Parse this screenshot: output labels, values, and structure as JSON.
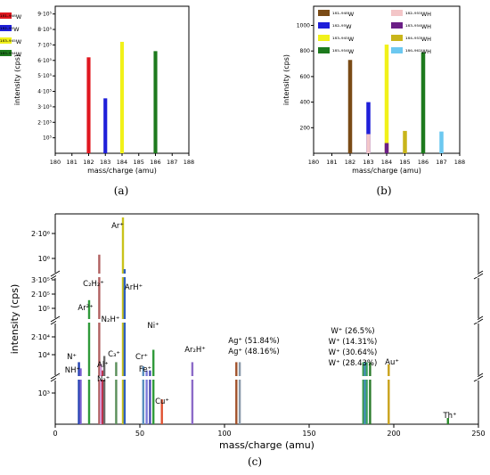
{
  "chart_data": [
    {
      "panel": "a",
      "type": "bar",
      "caption": "(a)",
      "xlabel": "mass/charge (amu)",
      "ylabel": "intensity (cps)",
      "xlim": [
        180,
        188
      ],
      "xticks": [
        "180",
        "181",
        "182",
        "183",
        "184",
        "185",
        "186",
        "187",
        "188"
      ],
      "ylim": [
        0,
        950000
      ],
      "yticks": [
        {
          "v": 100000,
          "label": "10⁵"
        },
        {
          "v": 200000,
          "label": "2·10⁵"
        },
        {
          "v": 300000,
          "label": "3·10⁵"
        },
        {
          "v": 400000,
          "label": "4·10⁵"
        },
        {
          "v": 500000,
          "label": "5·10⁵"
        },
        {
          "v": 600000,
          "label": "6·10⁵"
        },
        {
          "v": 700000,
          "label": "7·10⁵"
        },
        {
          "v": 800000,
          "label": "8·10⁵"
        },
        {
          "v": 900000,
          "label": "9·10⁵"
        }
      ],
      "legend_position": "top-left",
      "series": [
        {
          "name": "¹⁸¹·⁹⁴⁸W",
          "color": "#e0161f",
          "x": 182,
          "value": 620000
        },
        {
          "name": "¹⁸²·⁹⁵W",
          "color": "#1f1fd9",
          "x": 183,
          "value": 355000
        },
        {
          "name": "¹⁸³·⁹⁴⁵W",
          "color": "#f1f11a",
          "x": 184,
          "value": 720000
        },
        {
          "name": "¹⁸⁵·⁹⁵⁴W",
          "color": "#1d7a1d",
          "x": 186,
          "value": 660000
        }
      ]
    },
    {
      "panel": "b",
      "type": "bar",
      "caption": "(b)",
      "xlabel": "mass/charge (amu)",
      "ylabel": "intensity (cps)",
      "xlim": [
        180,
        188
      ],
      "xticks": [
        "180",
        "181",
        "182",
        "183",
        "184",
        "185",
        "186",
        "187",
        "188"
      ],
      "ylim": [
        0,
        1150
      ],
      "yticks": [
        {
          "v": 200,
          "label": "200"
        },
        {
          "v": 400,
          "label": "400"
        },
        {
          "v": 600,
          "label": "600"
        },
        {
          "v": 800,
          "label": "800"
        },
        {
          "v": 1000,
          "label": "1000"
        }
      ],
      "legend_position": "top",
      "series": [
        {
          "name": "¹⁸¹·⁹⁴⁸W",
          "color": "#7a4b16",
          "x": 182,
          "value": 730
        },
        {
          "name": "¹⁸²·⁹⁵W",
          "color": "#1f1fd9",
          "x": 183,
          "value": 400
        },
        {
          "name": "¹⁸³·⁹⁴⁵W",
          "color": "#f1f11a",
          "x": 184,
          "value": 850
        },
        {
          "name": "¹⁸⁵·⁹⁵⁴W",
          "color": "#1d7a1d",
          "x": 186,
          "value": 790
        },
        {
          "name": "¹⁸²·⁹⁵⁵WH",
          "color": "#f3c6c8",
          "x": 183,
          "value": 150
        },
        {
          "name": "¹⁸³·⁹⁵⁴WH",
          "color": "#6b1f86",
          "x": 184,
          "value": 80
        },
        {
          "name": "¹⁸⁴·⁹⁵³WH",
          "color": "#c9b51a",
          "x": 185,
          "value": 175
        },
        {
          "name": "¹⁸⁶·⁹⁶¹WH",
          "color": "#6cc8f0",
          "x": 187,
          "value": 170
        }
      ]
    },
    {
      "panel": "c",
      "type": "bar",
      "caption": "(c)",
      "xlabel": "mass/charge (amu)",
      "ylabel": "intensity (cps)",
      "xlim": [
        0,
        250
      ],
      "xticks": [
        "0",
        "50",
        "100",
        "150",
        "200",
        "250"
      ],
      "ytick_labels": [
        "10³",
        "10⁴",
        "2·10⁴",
        "10⁵",
        "2·10⁵",
        "3·10⁵",
        "10⁶",
        "2·10⁶"
      ],
      "annotations": [
        {
          "text": "Ar⁺",
          "x": 40
        },
        {
          "text": "C₂H₂⁺",
          "x": 26
        },
        {
          "text": "ArH⁺",
          "x": 41
        },
        {
          "text": "Ar²⁺",
          "x": 20
        },
        {
          "text": "N₂H⁺",
          "x": 29
        },
        {
          "text": "Ni⁺",
          "x": 58
        },
        {
          "text": "N⁺",
          "x": 14
        },
        {
          "text": "Al⁺",
          "x": 27
        },
        {
          "text": "C₃⁺",
          "x": 36
        },
        {
          "text": "Cr⁺",
          "x": 52
        },
        {
          "text": "NH⁺",
          "x": 15
        },
        {
          "text": "N₂⁺",
          "x": 28
        },
        {
          "text": "Fe⁺",
          "x": 56
        },
        {
          "text": "Cu⁺",
          "x": 63
        },
        {
          "text": "Ar₂H⁺",
          "x": 81
        },
        {
          "text": "Ag⁺ (51.84%)",
          "x": 107
        },
        {
          "text": "Ag⁺ (48.16%)",
          "x": 109
        },
        {
          "text": "W⁺ (26.5%)",
          "x": 182
        },
        {
          "text": "W⁺ (14.31%)",
          "x": 183
        },
        {
          "text": "W⁺ (30.64%)",
          "x": 184
        },
        {
          "text": "W⁺ (28.43%)",
          "x": 186
        },
        {
          "text": "Au⁺",
          "x": 197
        },
        {
          "text": "Th⁺",
          "x": 232
        }
      ],
      "bars": [
        {
          "x": 14,
          "color": "#1f3fb0",
          "level": 0.3
        },
        {
          "x": 15,
          "color": "#7a5fd0",
          "level": 0.27
        },
        {
          "x": 20,
          "color": "#2f9a3a",
          "level": 0.6
        },
        {
          "x": 26,
          "color": "#b06060",
          "level": 0.82
        },
        {
          "x": 27,
          "color": "#d89ad8",
          "level": 0.29
        },
        {
          "x": 28,
          "color": "#c0304a",
          "level": 0.26
        },
        {
          "x": 29,
          "color": "#6a6a6a",
          "level": 0.33
        },
        {
          "x": 36,
          "color": "#5a8f5a",
          "level": 0.3
        },
        {
          "x": 40,
          "color": "#c9c21a",
          "level": 1.0
        },
        {
          "x": 41,
          "color": "#2e5fbf",
          "level": 0.75
        },
        {
          "x": 52,
          "color": "#5a8fbf",
          "level": 0.28
        },
        {
          "x": 54,
          "color": "#7a7ad8",
          "level": 0.26
        },
        {
          "x": 56,
          "color": "#4a4ab0",
          "level": 0.26
        },
        {
          "x": 58,
          "color": "#2f9a3a",
          "level": 0.36
        },
        {
          "x": 63,
          "color": "#e05030",
          "level": 0.12
        },
        {
          "x": 81,
          "color": "#8c6ac8",
          "level": 0.3
        },
        {
          "x": 107,
          "color": "#a0502a",
          "level": 0.3
        },
        {
          "x": 109,
          "color": "#8a9aaa",
          "level": 0.3
        },
        {
          "x": 182,
          "color": "#3a9a4a",
          "level": 0.3
        },
        {
          "x": 183,
          "color": "#4a8ac8",
          "level": 0.3
        },
        {
          "x": 184,
          "color": "#3aa060",
          "level": 0.3
        },
        {
          "x": 186,
          "color": "#2a7a2a",
          "level": 0.3
        },
        {
          "x": 197,
          "color": "#c9a21a",
          "level": 0.29
        },
        {
          "x": 232,
          "color": "#2a8a2a",
          "level": 0.03
        }
      ]
    }
  ]
}
